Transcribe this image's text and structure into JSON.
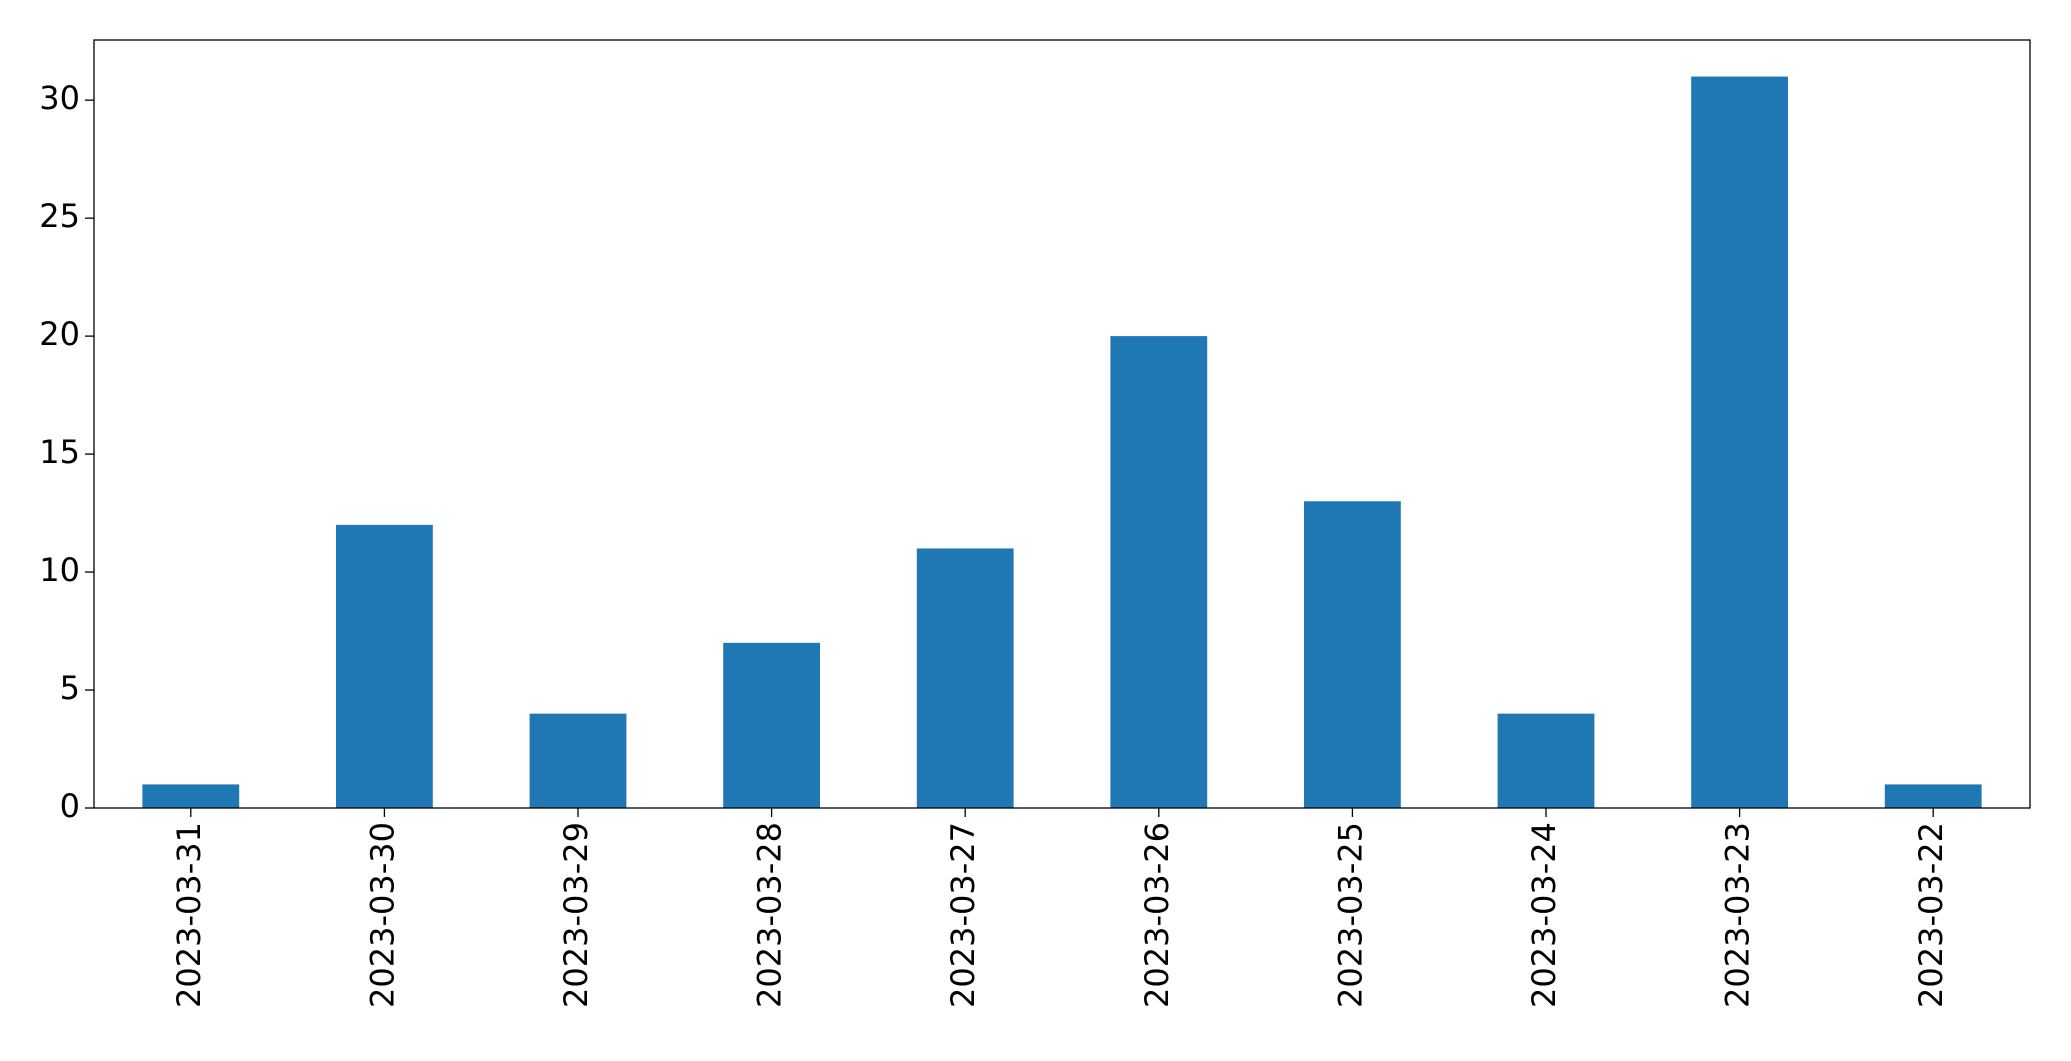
{
  "chart_data": {
    "type": "bar",
    "categories": [
      "2023-03-31",
      "2023-03-30",
      "2023-03-29",
      "2023-03-28",
      "2023-03-27",
      "2023-03-26",
      "2023-03-25",
      "2023-03-24",
      "2023-03-23",
      "2023-03-22"
    ],
    "values": [
      1,
      12,
      4,
      7,
      11,
      20,
      13,
      4,
      31,
      1
    ],
    "color": "#1f77b4",
    "ylim": [
      0,
      32.55
    ],
    "yticks": [
      0,
      5,
      10,
      15,
      20,
      25,
      30
    ],
    "grid": false
  }
}
